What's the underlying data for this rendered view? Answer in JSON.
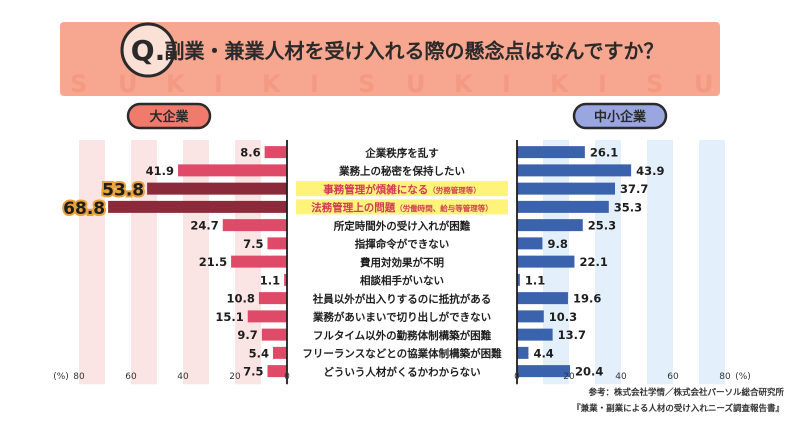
{
  "banner": {
    "q_mark": "Q.",
    "question": "副業・兼業人材を受け入れる際の懸念点はなんですか？",
    "watermark_text": "SUKIKI"
  },
  "chart_data": {
    "type": "bar",
    "categories": [
      "企業秩序を乱す",
      "業務上の秘密を保持したい",
      "事務管理が煩雑になる",
      "法務管理上の問題",
      "所定時間外の受け入れが困難",
      "指揮命令ができない",
      "費用対効果が不明",
      "相談相手がいない",
      "社員以外が出入りするのに抵抗がある",
      "業務があいまいで切り出しができない",
      "フルタイム以外の勤務体制構築が困難",
      "フリーランスなどとの協業体制構築が困難",
      "どういう人材がくるかわからない"
    ],
    "category_notes": [
      "",
      "",
      "（労務管理等）",
      "（労働時間、給与等管理等）",
      "",
      "",
      "",
      "",
      "",
      "",
      "",
      "",
      ""
    ],
    "highlighted": [
      2,
      3
    ],
    "series": [
      {
        "name": "大企業",
        "values": [
          8.6,
          41.9,
          53.8,
          68.8,
          24.7,
          7.5,
          21.5,
          1.1,
          10.8,
          15.1,
          9.7,
          5.4,
          7.5
        ],
        "value_labels": [
          "8.6",
          "41.9",
          "53.8",
          "68.8",
          "24.7",
          "7.5",
          "21.5",
          "1.1",
          "10.8",
          "15.1",
          "9.7",
          "5.4",
          "7.5"
        ]
      },
      {
        "name": "中小企業",
        "values": [
          26.1,
          43.9,
          37.7,
          35.3,
          25.3,
          9.8,
          22.1,
          1.1,
          19.6,
          10.3,
          13.7,
          4.4,
          20.4
        ],
        "value_labels": [
          "26.1",
          "43.9",
          "37.7",
          "35.3",
          "25.3",
          "9.8",
          "22.1",
          "1.1",
          "19.6",
          "10.3",
          "13.7",
          "4.4",
          "20.4"
        ]
      }
    ],
    "left_ticks": [
      "(%)",
      "80",
      "60",
      "40",
      "20",
      "0"
    ],
    "right_ticks": [
      "0",
      "20",
      "40",
      "60",
      "80",
      "(%)"
    ],
    "xlim": [
      0,
      80
    ],
    "colors": {
      "large_bar": "#df4a68",
      "large_bar_highlight": "#8a2a3a",
      "small_bar": "#3b62ad",
      "large_band": "#fbe4e4",
      "small_band": "#e3f0fb",
      "highlight_bg": "#fff37a",
      "highlight_text": "#d23a57",
      "note_text": "#d23a57",
      "badge_border": "#2a2a2a",
      "large_badge": "#f07b6c",
      "small_badge": "#9aa6e0",
      "banner_bg": "#f7a68f",
      "value_outline": "#e9a13a"
    }
  },
  "source": {
    "line1": "参考：株式会社学情／株式会社パーソル総合研究所",
    "line2": "『兼業・副業による人材の受け入れニーズ調査報告書』"
  }
}
